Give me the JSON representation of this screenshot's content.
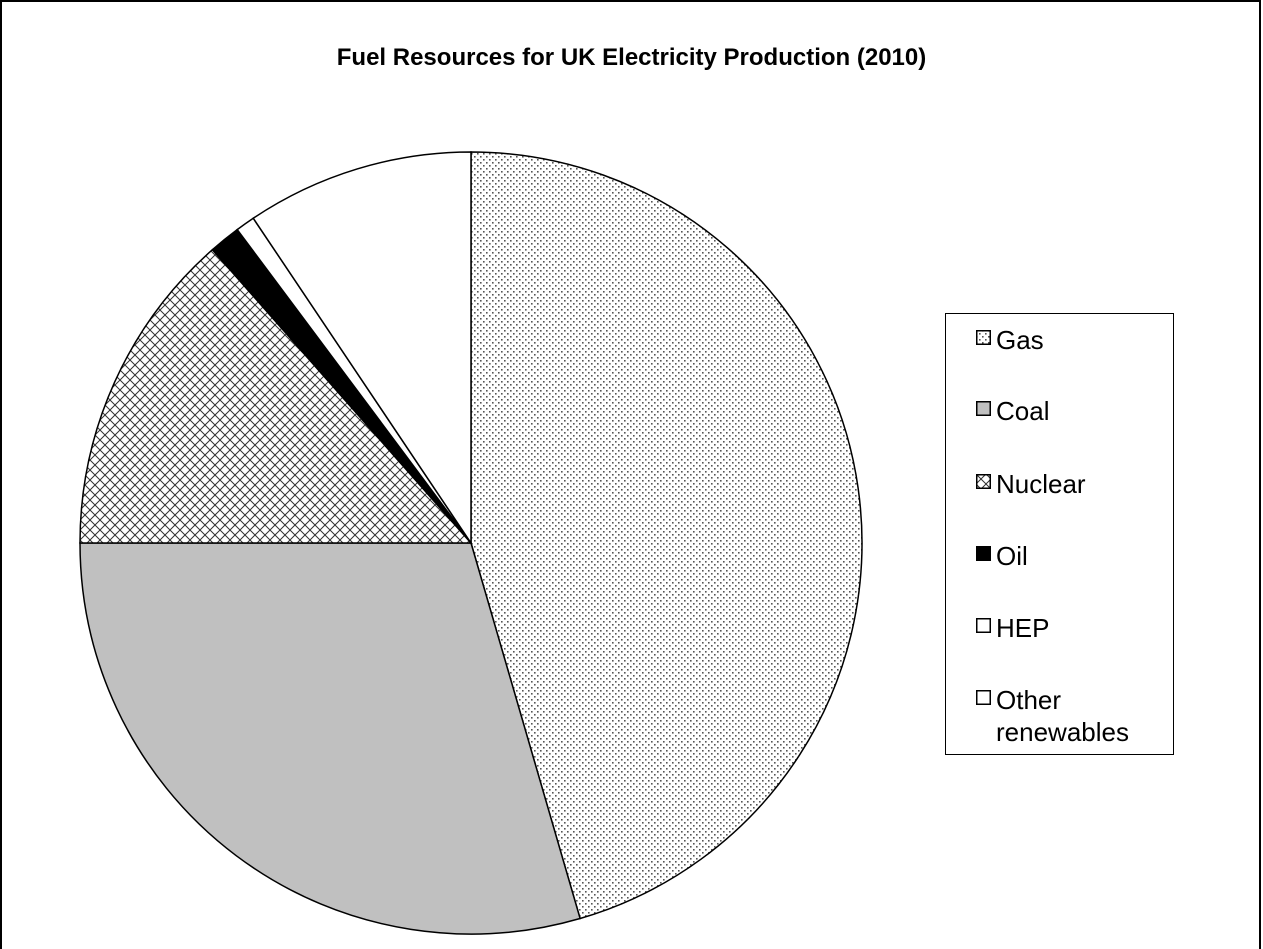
{
  "chart_data": {
    "type": "pie",
    "title": "Fuel Resources for UK Electricity Production (2010)",
    "legend_position": "right",
    "slices": [
      {
        "name": "Gas",
        "value": 45.5,
        "pattern": "dots"
      },
      {
        "name": "Coal",
        "value": 29.5,
        "pattern": "solid-gray"
      },
      {
        "name": "Nuclear",
        "value": 13.5,
        "pattern": "crosshatch"
      },
      {
        "name": "Oil",
        "value": 1.3,
        "pattern": "solid-black"
      },
      {
        "name": "HEP",
        "value": 0.8,
        "pattern": "white"
      },
      {
        "name": "Other renewables",
        "value": 9.4,
        "pattern": "white"
      }
    ],
    "colors": {
      "gas": "#ffffff",
      "coal": "#c0c0c0",
      "nuclear": "#ffffff",
      "oil": "#000000",
      "hep": "#ffffff",
      "other": "#ffffff"
    }
  },
  "legend": {
    "items": [
      {
        "label": "Gas",
        "icon": "gas-swatch"
      },
      {
        "label": "Coal",
        "icon": "coal-swatch"
      },
      {
        "label": "Nuclear",
        "icon": "nuclear-swatch"
      },
      {
        "label": "Oil",
        "icon": "oil-swatch"
      },
      {
        "label": "HEP",
        "icon": "hep-swatch"
      },
      {
        "label": "Other renewables",
        "icon": "other-renewables-swatch"
      }
    ]
  }
}
